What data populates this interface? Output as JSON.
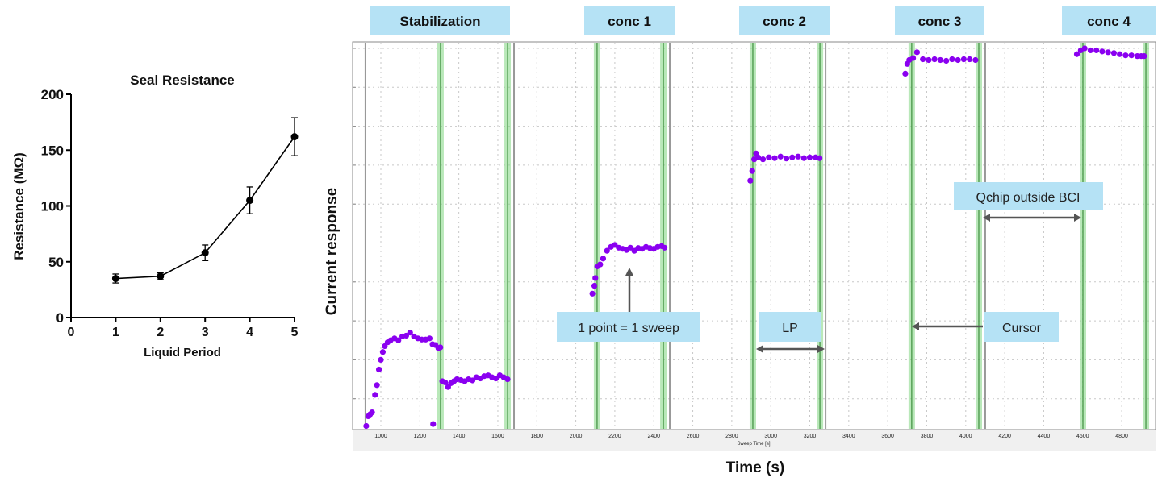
{
  "chart_data": [
    {
      "type": "line",
      "title": "Seal Resistance",
      "xlabel": "Liquid Period",
      "ylabel": "Resistance (MΩ)",
      "xlim": [
        0,
        5
      ],
      "ylim": [
        0,
        200
      ],
      "xticks": [
        "0",
        "1",
        "2",
        "3",
        "4",
        "5"
      ],
      "yticks": [
        "0",
        "50",
        "100",
        "150",
        "200"
      ],
      "grid": false,
      "x": [
        1,
        2,
        3,
        4,
        5
      ],
      "values": [
        35,
        37,
        58,
        105,
        162
      ],
      "error": [
        4,
        3,
        7,
        12,
        17
      ],
      "color": "#000000"
    },
    {
      "type": "scatter",
      "xlabel": "Time (s)",
      "inner_xlabel": "Sweep Time [s]",
      "ylabel": "Current response",
      "xlim": [
        905,
        4973
      ],
      "ylim": [
        0.23,
        10.17
      ],
      "xticks": [
        "1000",
        "1200",
        "1400",
        "1600",
        "1800",
        "2000",
        "2200",
        "2400",
        "2600",
        "2800",
        "3000",
        "3200",
        "3400",
        "3600",
        "3800",
        "4000",
        "4200",
        "4400",
        "4600",
        "4800"
      ],
      "grid": true,
      "point_color": "#8a00f0",
      "cursor_color": "#7fd67f",
      "boundary_color": "#999999",
      "phases": [
        {
          "label": "Stabilization",
          "start": 921,
          "end": 1683
        },
        {
          "label": "conc 1",
          "start": 2109,
          "end": 2482
        },
        {
          "label": "conc 2",
          "start": 2908,
          "end": 3281
        },
        {
          "label": "conc 3",
          "start": 3723,
          "end": 4100
        },
        {
          "label": "conc 4",
          "start": 4601,
          "end": 4973
        }
      ],
      "boundaries": [
        921,
        1683,
        2482,
        3281,
        4100
      ],
      "cursors": [
        1306,
        1650,
        2109,
        2449,
        2908,
        3252,
        3723,
        4067,
        4601,
        4924
      ],
      "points": [
        [
          925,
          0.3
        ],
        [
          935,
          0.55
        ],
        [
          945,
          0.6
        ],
        [
          955,
          0.65
        ],
        [
          970,
          1.1
        ],
        [
          980,
          1.35
        ],
        [
          990,
          1.75
        ],
        [
          1000,
          2.0
        ],
        [
          1010,
          2.2
        ],
        [
          1020,
          2.35
        ],
        [
          1035,
          2.45
        ],
        [
          1050,
          2.5
        ],
        [
          1070,
          2.55
        ],
        [
          1090,
          2.5
        ],
        [
          1110,
          2.6
        ],
        [
          1130,
          2.62
        ],
        [
          1150,
          2.7
        ],
        [
          1170,
          2.6
        ],
        [
          1190,
          2.55
        ],
        [
          1210,
          2.52
        ],
        [
          1230,
          2.52
        ],
        [
          1250,
          2.55
        ],
        [
          1265,
          2.4
        ],
        [
          1268,
          0.35
        ],
        [
          1280,
          2.38
        ],
        [
          1295,
          2.3
        ],
        [
          1305,
          2.32
        ],
        [
          1315,
          1.45
        ],
        [
          1330,
          1.42
        ],
        [
          1345,
          1.3
        ],
        [
          1360,
          1.4
        ],
        [
          1375,
          1.45
        ],
        [
          1390,
          1.5
        ],
        [
          1410,
          1.48
        ],
        [
          1430,
          1.45
        ],
        [
          1450,
          1.5
        ],
        [
          1470,
          1.47
        ],
        [
          1490,
          1.55
        ],
        [
          1510,
          1.52
        ],
        [
          1530,
          1.58
        ],
        [
          1550,
          1.6
        ],
        [
          1570,
          1.55
        ],
        [
          1590,
          1.52
        ],
        [
          1610,
          1.6
        ],
        [
          1630,
          1.55
        ],
        [
          1650,
          1.5
        ],
        [
          2085,
          3.7
        ],
        [
          2095,
          3.9
        ],
        [
          2100,
          4.1
        ],
        [
          2110,
          4.4
        ],
        [
          2125,
          4.45
        ],
        [
          2140,
          4.6
        ],
        [
          2160,
          4.8
        ],
        [
          2180,
          4.9
        ],
        [
          2200,
          4.95
        ],
        [
          2220,
          4.88
        ],
        [
          2240,
          4.85
        ],
        [
          2260,
          4.82
        ],
        [
          2280,
          4.88
        ],
        [
          2300,
          4.8
        ],
        [
          2320,
          4.87
        ],
        [
          2340,
          4.85
        ],
        [
          2360,
          4.9
        ],
        [
          2380,
          4.87
        ],
        [
          2400,
          4.85
        ],
        [
          2420,
          4.9
        ],
        [
          2440,
          4.92
        ],
        [
          2455,
          4.88
        ],
        [
          2895,
          6.6
        ],
        [
          2905,
          6.85
        ],
        [
          2915,
          7.15
        ],
        [
          2925,
          7.3
        ],
        [
          2935,
          7.2
        ],
        [
          2960,
          7.15
        ],
        [
          2990,
          7.2
        ],
        [
          3020,
          7.18
        ],
        [
          3050,
          7.22
        ],
        [
          3080,
          7.17
        ],
        [
          3110,
          7.2
        ],
        [
          3140,
          7.22
        ],
        [
          3170,
          7.18
        ],
        [
          3200,
          7.2
        ],
        [
          3230,
          7.2
        ],
        [
          3250,
          7.18
        ],
        [
          3690,
          9.35
        ],
        [
          3700,
          9.6
        ],
        [
          3710,
          9.7
        ],
        [
          3730,
          9.75
        ],
        [
          3750,
          9.9
        ],
        [
          3780,
          9.72
        ],
        [
          3810,
          9.7
        ],
        [
          3840,
          9.72
        ],
        [
          3870,
          9.7
        ],
        [
          3900,
          9.68
        ],
        [
          3930,
          9.72
        ],
        [
          3960,
          9.7
        ],
        [
          3990,
          9.72
        ],
        [
          4020,
          9.72
        ],
        [
          4050,
          9.7
        ],
        [
          4570,
          9.85
        ],
        [
          4590,
          9.95
        ],
        [
          4610,
          10.0
        ],
        [
          4640,
          9.95
        ],
        [
          4670,
          9.95
        ],
        [
          4700,
          9.92
        ],
        [
          4730,
          9.9
        ],
        [
          4760,
          9.88
        ],
        [
          4790,
          9.85
        ],
        [
          4820,
          9.82
        ],
        [
          4850,
          9.82
        ],
        [
          4880,
          9.8
        ],
        [
          4900,
          9.8
        ],
        [
          4915,
          9.8
        ]
      ],
      "annotations": {
        "point": "1 point = 1 sweep",
        "lp": "LP",
        "cursor": "Cursor",
        "qchip": "Qchip outside BCI"
      },
      "label_box_color": "#b5e2f5"
    }
  ]
}
